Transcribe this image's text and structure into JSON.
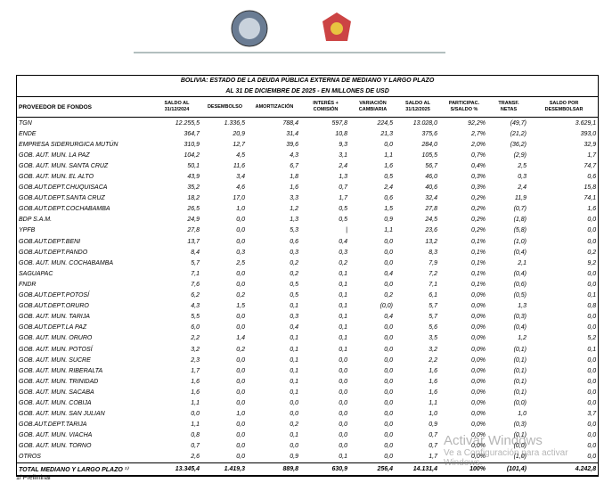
{
  "table": {
    "title": "BOLIVIA: ESTADO DE LA DEUDA PÚBLICA EXTERNA DE MEDIANO Y LARGO PLAZO",
    "subtitle": "AL 31 DE DICIEMBRE DE 2025 - EN MILLONES DE USD",
    "headers": [
      "PROVEEDOR DE FONDOS",
      "SALDO AL 31/12/2024",
      "DESEMBOLSO",
      "AMORTIZACIÓN",
      "INTERÉS + COMISIÓN",
      "VARIACIÓN CAMBIARIA",
      "SALDO AL 31/12/2025",
      "PARTICIPAC. S/SALDO %",
      "TRANSF. NETAS",
      "SALDO POR DESEMBOLSAR"
    ],
    "rows": [
      [
        "TGN",
        "12.255,5",
        "1.336,5",
        "788,4",
        "597,8",
        "224,5",
        "13.028,0",
        "92,2%",
        "(49,7)",
        "3.629,1"
      ],
      [
        "ENDE",
        "364,7",
        "20,9",
        "31,4",
        "10,8",
        "21,3",
        "375,6",
        "2,7%",
        "(21,2)",
        "393,0"
      ],
      [
        "EMPRESA SIDERURGICA MUTÚN",
        "310,9",
        "12,7",
        "39,6",
        "9,3",
        "0,0",
        "284,0",
        "2,0%",
        "(36,2)",
        "32,9"
      ],
      [
        "GOB. AUT. MUN. LA PAZ",
        "104,2",
        "4,5",
        "4,3",
        "3,1",
        "1,1",
        "105,5",
        "0,7%",
        "(2,9)",
        "1,7"
      ],
      [
        "GOB. AUT. MUN. SANTA CRUZ",
        "50,1",
        "11,6",
        "6,7",
        "2,4",
        "1,6",
        "56,7",
        "0,4%",
        "2,5",
        "74,7"
      ],
      [
        "GOB. AUT. MUN. EL ALTO",
        "43,9",
        "3,4",
        "1,8",
        "1,3",
        "0,5",
        "46,0",
        "0,3%",
        "0,3",
        "0,6"
      ],
      [
        "GOB.AUT.DEPT.CHUQUISACA",
        "35,2",
        "4,6",
        "1,6",
        "0,7",
        "2,4",
        "40,6",
        "0,3%",
        "2,4",
        "15,8"
      ],
      [
        "GOB.AUT.DEPT.SANTA CRUZ",
        "18,2",
        "17,0",
        "3,3",
        "1,7",
        "0,6",
        "32,4",
        "0,2%",
        "11,9",
        "74,1"
      ],
      [
        "GOB.AUT.DEPT.COCHABAMBA",
        "26,5",
        "1,0",
        "1,2",
        "0,5",
        "1,5",
        "27,8",
        "0,2%",
        "(0,7)",
        "1,6"
      ],
      [
        "BDP S.A.M.",
        "24,9",
        "0,0",
        "1,3",
        "0,5",
        "0,9",
        "24,5",
        "0,2%",
        "(1,8)",
        "0,0"
      ],
      [
        "YPFB",
        "27,8",
        "0,0",
        "5,3",
        "|",
        "1,1",
        "23,6",
        "0,2%",
        "(5,8)",
        "0,0"
      ],
      [
        "GOB.AUT.DEPT.BENI",
        "13,7",
        "0,0",
        "0,6",
        "0,4",
        "0,0",
        "13,2",
        "0,1%",
        "(1,0)",
        "0,0"
      ],
      [
        "GOB.AUT.DEPT.PANDO",
        "8,4",
        "0,3",
        "0,3",
        "0,3",
        "0,0",
        "8,3",
        "0,1%",
        "(0,4)",
        "0,2"
      ],
      [
        "GOB. AUT. MUN. COCHABAMBA",
        "5,7",
        "2,5",
        "0,2",
        "0,2",
        "0,0",
        "7,9",
        "0,1%",
        "2,1",
        "9,2"
      ],
      [
        "SAGUAPAC",
        "7,1",
        "0,0",
        "0,2",
        "0,1",
        "0,4",
        "7,2",
        "0,1%",
        "(0,4)",
        "0,0"
      ],
      [
        "FNDR",
        "7,6",
        "0,0",
        "0,5",
        "0,1",
        "0,0",
        "7,1",
        "0,1%",
        "(0,6)",
        "0,0"
      ],
      [
        "GOB.AUT.DEPT.POTOSÍ",
        "6,2",
        "0,2",
        "0,5",
        "0,1",
        "0,2",
        "6,1",
        "0,0%",
        "(0,5)",
        "0,1"
      ],
      [
        "GOB.AUT.DEPT.ORURO",
        "4,3",
        "1,5",
        "0,1",
        "0,1",
        "(0,0)",
        "5,7",
        "0,0%",
        "1,3",
        "0,8"
      ],
      [
        "GOB. AUT. MUN. TARIJA",
        "5,5",
        "0,0",
        "0,3",
        "0,1",
        "0,4",
        "5,7",
        "0,0%",
        "(0,3)",
        "0,0"
      ],
      [
        "GOB.AUT.DEPT.LA PAZ",
        "6,0",
        "0,0",
        "0,4",
        "0,1",
        "0,0",
        "5,6",
        "0,0%",
        "(0,4)",
        "0,0"
      ],
      [
        "GOB. AUT. MUN. ORURO",
        "2,2",
        "1,4",
        "0,1",
        "0,1",
        "0,0",
        "3,5",
        "0,0%",
        "1,2",
        "5,2"
      ],
      [
        "GOB. AUT. MUN. POTOSÍ",
        "3,2",
        "0,2",
        "0,1",
        "0,1",
        "0,0",
        "3,2",
        "0,0%",
        "(0,1)",
        "0,1"
      ],
      [
        "GOB. AUT. MUN. SUCRE",
        "2,3",
        "0,0",
        "0,1",
        "0,0",
        "0,0",
        "2,2",
        "0,0%",
        "(0,1)",
        "0,0"
      ],
      [
        "GOB. AUT. MUN. RIBERALTA",
        "1,7",
        "0,0",
        "0,1",
        "0,0",
        "0,0",
        "1,6",
        "0,0%",
        "(0,1)",
        "0,0"
      ],
      [
        "GOB. AUT. MUN. TRINIDAD",
        "1,6",
        "0,0",
        "0,1",
        "0,0",
        "0,0",
        "1,6",
        "0,0%",
        "(0,1)",
        "0,0"
      ],
      [
        "GOB. AUT. MUN. SACABA",
        "1,6",
        "0,0",
        "0,1",
        "0,0",
        "0,0",
        "1,6",
        "0,0%",
        "(0,1)",
        "0,0"
      ],
      [
        "GOB. AUT. MUN. COBIJA",
        "1,1",
        "0,0",
        "0,0",
        "0,0",
        "0,0",
        "1,1",
        "0,0%",
        "(0,0)",
        "0,0"
      ],
      [
        "GOB. AUT. MUN. SAN JULIAN",
        "0,0",
        "1,0",
        "0,0",
        "0,0",
        "0,0",
        "1,0",
        "0,0%",
        "1,0",
        "3,7"
      ],
      [
        "GOB.AUT.DEPT.TARIJA",
        "1,1",
        "0,0",
        "0,2",
        "0,0",
        "0,0",
        "0,9",
        "0,0%",
        "(0,3)",
        "0,0"
      ],
      [
        "GOB. AUT. MUN. VIACHA",
        "0,8",
        "0,0",
        "0,1",
        "0,0",
        "0,0",
        "0,7",
        "0,0%",
        "(0,1)",
        "0,0"
      ],
      [
        "GOB. AUT. MUN. TORNO",
        "0,7",
        "0,0",
        "0,0",
        "0,0",
        "0,0",
        "0,7",
        "0,0%",
        "(0,0)",
        "0,0"
      ],
      [
        "OTROS",
        "2,6",
        "0,0",
        "0,9",
        "0,1",
        "0,0",
        "1,7",
        "0,0%",
        "(1,0)",
        "0,0"
      ]
    ],
    "total": [
      "TOTAL MEDIANO Y LARGO PLAZO ¹⁾",
      "13.345,4",
      "1.419,3",
      "889,8",
      "630,9",
      "256,4",
      "14.131,4",
      "100%",
      "(101,4)",
      "4.242,8"
    ]
  },
  "footnote": "1/ Preliminar",
  "watermark": [
    "Activar Windows",
    "Ve a Configuración para activar Windows."
  ]
}
